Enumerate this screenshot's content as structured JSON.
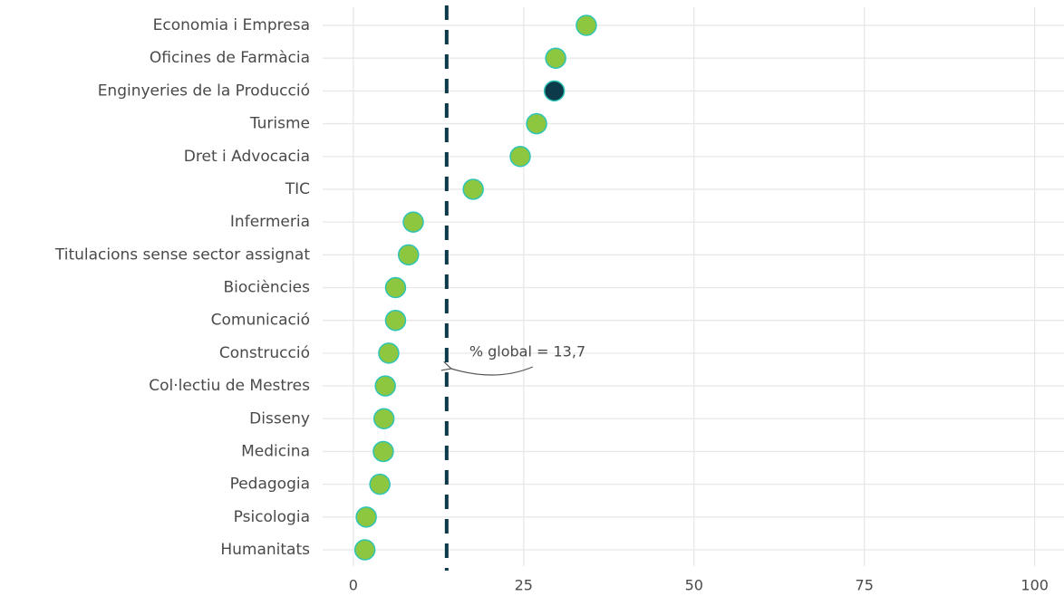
{
  "chart_data": {
    "type": "dot",
    "categories": [
      "Economia i Empresa",
      "Oficines de Farmàcia",
      "Enginyeries de la Producció",
      "Turisme",
      "Dret i Advocacia",
      "TIC",
      "Infermeria",
      "Titulacions sense sector assignat",
      "Biociències",
      "Comunicació",
      "Construcció",
      "Col·lectiu de Mestres",
      "Disseny",
      "Medicina",
      "Pedagogia",
      "Psicologia",
      "Humanitats"
    ],
    "values": [
      34.2,
      29.7,
      29.5,
      26.9,
      24.5,
      17.6,
      8.8,
      8.1,
      6.2,
      6.2,
      5.2,
      4.7,
      4.5,
      4.4,
      3.9,
      1.9,
      1.7
    ],
    "colors": [
      "#8dc63f",
      "#8dc63f",
      "#0c3a4b",
      "#8dc63f",
      "#8dc63f",
      "#8dc63f",
      "#8dc63f",
      "#8dc63f",
      "#8dc63f",
      "#8dc63f",
      "#8dc63f",
      "#8dc63f",
      "#8dc63f",
      "#8dc63f",
      "#8dc63f",
      "#8dc63f",
      "#8dc63f"
    ],
    "marker_edge_color": "#2ec4b6",
    "xlim": [
      -4.5,
      104.3
    ],
    "xticks": [
      0,
      25,
      50,
      75,
      100
    ],
    "grid": true,
    "reference_line": {
      "value": 13.7,
      "label": "% global = 13,7",
      "color": "#0c3a4b"
    }
  }
}
